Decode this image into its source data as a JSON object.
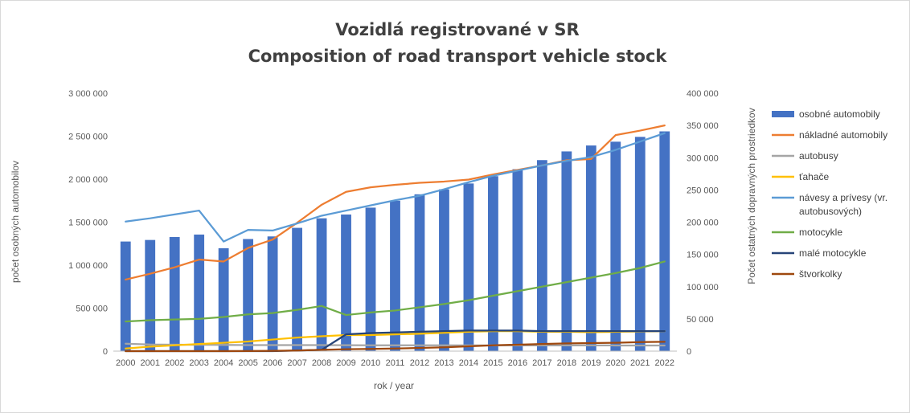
{
  "chart_data": {
    "type": "bar+line",
    "title": [
      "Vozidlá registrované v SR",
      "Composition of road transport vehicle stock"
    ],
    "xlabel": "rok / year",
    "ylabel_left": "počet osobných automobilov",
    "ylabel_right": "Počet ostatných dopravných prostriedkov",
    "ylim_left": [
      0,
      3000000
    ],
    "ylim_right": [
      0,
      400000
    ],
    "yticks_left": [
      "0",
      "500 000",
      "1 000 000",
      "1 500 000",
      "2 000 000",
      "2 500 000",
      "3 000 000"
    ],
    "yticks_right": [
      "0",
      "50 000",
      "100 000",
      "150 000",
      "200 000",
      "250 000",
      "300 000",
      "350 000",
      "400 000"
    ],
    "grid": false,
    "legend_position": "right",
    "categories": [
      "2000",
      "2001",
      "2002",
      "2003",
      "2004",
      "2005",
      "2006",
      "2007",
      "2008",
      "2009",
      "2010",
      "2011",
      "2012",
      "2013",
      "2014",
      "2015",
      "2016",
      "2017",
      "2018",
      "2019",
      "2020",
      "2021",
      "2022"
    ],
    "series": [
      {
        "name": "osobné automobily",
        "type": "bar",
        "axis": "left",
        "color": "#4472C4",
        "values": [
          1275000,
          1293000,
          1327000,
          1356000,
          1197000,
          1304000,
          1334000,
          1434000,
          1545000,
          1589000,
          1669000,
          1749000,
          1824000,
          1882000,
          1950000,
          2035000,
          2116000,
          2222000,
          2323000,
          2392000,
          2436000,
          2492000,
          2556000
        ]
      },
      {
        "name": "nákladné automobily",
        "type": "line",
        "axis": "right",
        "color": "#ED7D31",
        "values": [
          111000,
          120000,
          130000,
          142000,
          139000,
          160000,
          173000,
          199000,
          227000,
          247000,
          254000,
          258000,
          261000,
          263000,
          266000,
          274000,
          281000,
          288000,
          296000,
          298000,
          335000,
          342000,
          350000
        ]
      },
      {
        "name": "autobusy",
        "type": "line",
        "axis": "right",
        "color": "#A5A5A5",
        "values": [
          11500,
          10200,
          10000,
          9800,
          9600,
          9400,
          9400,
          9300,
          9300,
          9200,
          9100,
          9100,
          9000,
          9000,
          8900,
          8900,
          8900,
          8900,
          8900,
          8900,
          8800,
          8800,
          8700
        ]
      },
      {
        "name": "ťahače",
        "type": "line",
        "axis": "right",
        "color": "#FFC000",
        "values": [
          4000,
          7000,
          9000,
          11000,
          13000,
          15000,
          18000,
          21000,
          23000,
          25000,
          25000,
          26000,
          27000,
          28500,
          30000,
          31000,
          31000,
          30000,
          30000,
          29500,
          30000,
          30500,
          31000
        ]
      },
      {
        "name": "návesy a prívesy (vr. autobusových)",
        "type": "line",
        "axis": "right",
        "color": "#5B9BD5",
        "values": [
          201000,
          206000,
          212000,
          218000,
          170000,
          188000,
          187000,
          198000,
          210000,
          218000,
          226000,
          234000,
          241000,
          251000,
          262000,
          272000,
          280000,
          288000,
          295000,
          301000,
          312000,
          325000,
          338000
        ]
      },
      {
        "name": "motocykle",
        "type": "line",
        "axis": "right",
        "color": "#70AD47",
        "values": [
          46000,
          48000,
          49000,
          50000,
          53000,
          57000,
          59000,
          64000,
          70000,
          56000,
          60000,
          63000,
          68000,
          73000,
          79000,
          86000,
          93000,
          100000,
          107000,
          114000,
          121000,
          129000,
          139000
        ]
      },
      {
        "name": "malé motocykle",
        "type": "line",
        "axis": "right",
        "color": "#264478",
        "values": [
          0,
          0,
          0,
          0,
          0,
          0,
          0,
          1000,
          2000,
          26000,
          28000,
          29000,
          30000,
          31000,
          32000,
          32000,
          32000,
          31000,
          31000,
          31000,
          31000,
          31000,
          31000
        ]
      },
      {
        "name": "štvorkolky",
        "type": "line",
        "axis": "right",
        "color": "#9E480E",
        "values": [
          0,
          0,
          0,
          0,
          0,
          200,
          500,
          1000,
          2000,
          3000,
          3500,
          4000,
          5000,
          6000,
          7500,
          9000,
          10000,
          11000,
          12000,
          12500,
          13000,
          14000,
          14500
        ]
      }
    ]
  }
}
